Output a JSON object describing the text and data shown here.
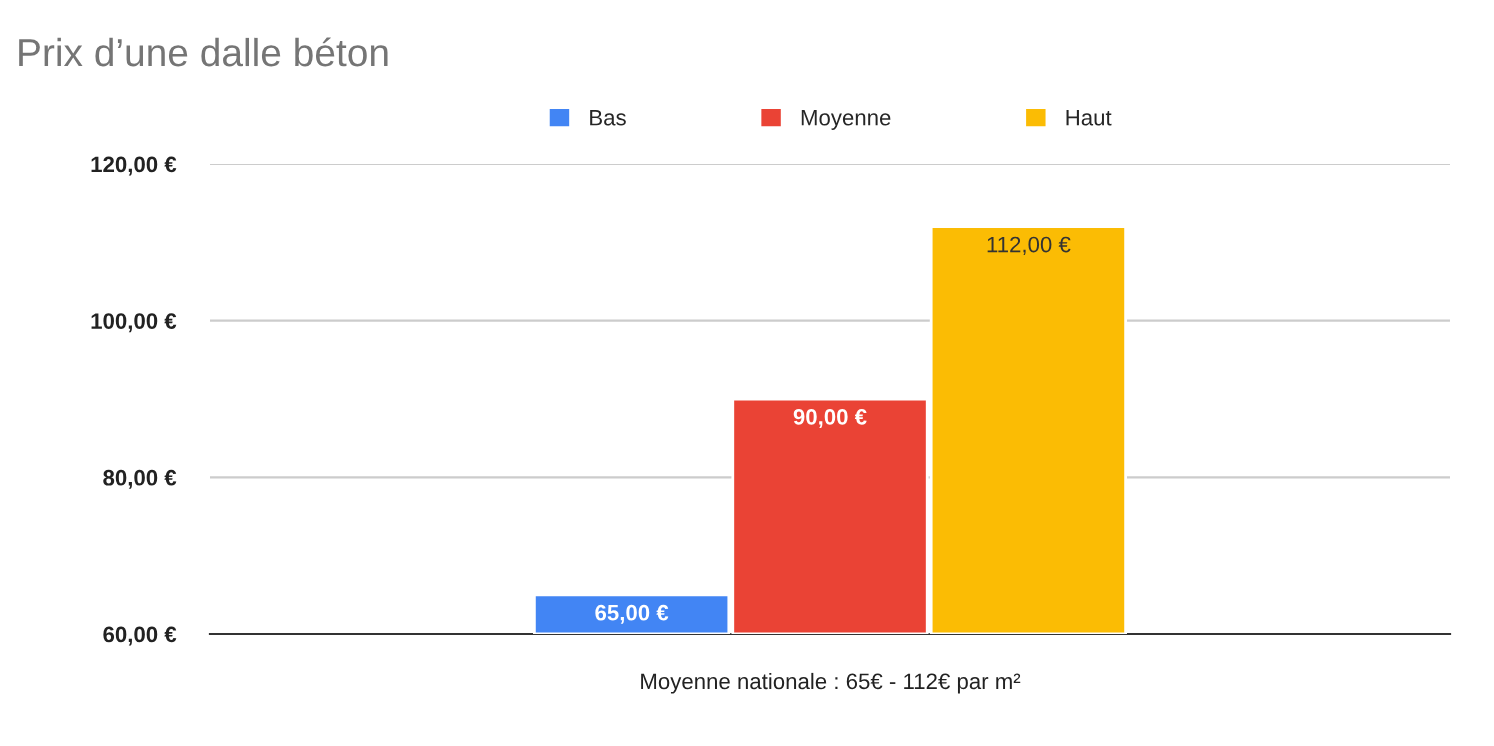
{
  "chart_data": {
    "type": "bar",
    "title": "Prix d’une dalle béton",
    "categories": [
      "Moyenne nationale : 65€ - 112€ par m²"
    ],
    "series": [
      {
        "name": "Bas",
        "color": "#4285f4",
        "values": [
          65
        ],
        "value_labels": [
          "65,00 €"
        ]
      },
      {
        "name": "Moyenne",
        "color": "#ea4335",
        "values": [
          90
        ],
        "value_labels": [
          "90,00 €"
        ]
      },
      {
        "name": "Haut",
        "color": "#fbbc04",
        "values": [
          112
        ],
        "value_labels": [
          "112,00 €"
        ]
      }
    ],
    "ylim": [
      60,
      120
    ],
    "yticks": [
      {
        "value": 60,
        "label": "60,00 €"
      },
      {
        "value": 80,
        "label": "80,00 €"
      },
      {
        "value": 100,
        "label": "100,00 €"
      },
      {
        "value": 120,
        "label": "120,00 €"
      }
    ],
    "grid": "y",
    "legend": "top"
  }
}
